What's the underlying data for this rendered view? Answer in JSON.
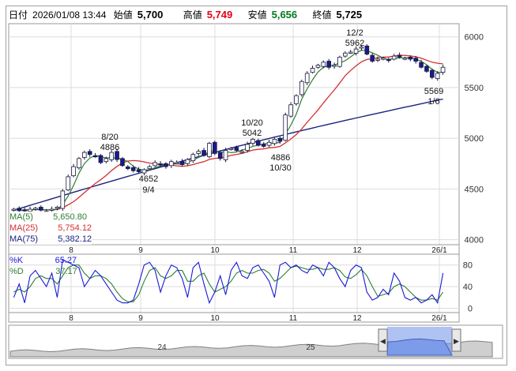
{
  "header": {
    "date_label": "日付",
    "datetime": "2026/01/08 13:44",
    "open_label": "始値",
    "open_value": "5,700",
    "high_label": "高値",
    "high_value": "5,749",
    "low_label": "安値",
    "low_value": "5,656",
    "close_label": "終値",
    "close_value": "5,725"
  },
  "ma_legend": [
    {
      "label": "MA(5)",
      "value": "5,650.80",
      "color": "#2e7d32"
    },
    {
      "label": "MA(25)",
      "value": "5,754.12",
      "color": "#d32f2f"
    },
    {
      "label": "MA(75)",
      "value": "5,382.12",
      "color": "#1a237e"
    }
  ],
  "stoch_legend": [
    {
      "label": "%K",
      "value": "65.27",
      "color": "#1a1ad8"
    },
    {
      "label": "%D",
      "value": "37.17",
      "color": "#2e7d32"
    }
  ],
  "annotations": [
    {
      "text1": "8/20",
      "text2": "4886"
    },
    {
      "text1": "4652",
      "text2": "9/4"
    },
    {
      "text1": "10/20",
      "text2": "5042"
    },
    {
      "text1": "4886",
      "text2": "10/30"
    },
    {
      "text1": "12/2",
      "text2": "5962"
    },
    {
      "text1": "5569",
      "text2": "1/6"
    }
  ],
  "month_labels": [
    "8",
    "9",
    "10",
    "11",
    "12",
    "26/1"
  ],
  "navigator": {
    "labels": [
      "24",
      "25"
    ],
    "left_handle": "◀",
    "right_handle": "▶"
  },
  "chart_data": [
    {
      "type": "candlestick",
      "title": "",
      "yticks": [
        4000,
        4500,
        5000,
        5500,
        6000
      ],
      "ylim": [
        3950,
        6130
      ],
      "x_labels": [
        "8",
        "9",
        "10",
        "11",
        "12",
        "26/1"
      ],
      "colors": {
        "up": "#ffffff",
        "down": "#1a1a8c",
        "ma5": "#2e7d32",
        "ma25": "#d32f2f",
        "ma75": "#1a237e"
      },
      "close_approx": [
        4300,
        4285,
        4290,
        4300,
        4310,
        4290,
        4280,
        4300,
        4320,
        4480,
        4620,
        4720,
        4800,
        4860,
        4840,
        4820,
        4760,
        4800,
        4860,
        4790,
        4730,
        4700,
        4680,
        4670,
        4690,
        4720,
        4760,
        4740,
        4720,
        4770,
        4760,
        4740,
        4790,
        4840,
        4870,
        4830,
        4950,
        4850,
        4800,
        4880,
        4900,
        4880,
        4870,
        4940,
        4990,
        4930,
        4920,
        4960,
        4990,
        4970,
        5230,
        5330,
        5420,
        5560,
        5640,
        5690,
        5720,
        5750,
        5700,
        5720,
        5800,
        5840,
        5850,
        5880,
        5900,
        5830,
        5760,
        5780,
        5790,
        5770,
        5810,
        5800,
        5790,
        5780,
        5760,
        5700,
        5660,
        5600,
        5640,
        5700
      ],
      "ma": [
        {
          "name": "MA(5)",
          "last": 5650.8
        },
        {
          "name": "MA(25)",
          "last": 5754.12
        },
        {
          "name": "MA(75)",
          "last": 5382.12
        }
      ]
    },
    {
      "type": "line",
      "title": "",
      "yticks": [
        0,
        40,
        80
      ],
      "ylim": [
        -8,
        100
      ],
      "series": [
        {
          "name": "%K",
          "last": 65.27
        },
        {
          "name": "%D",
          "last": 37.17
        }
      ],
      "k_approx": [
        20,
        45,
        10,
        60,
        70,
        55,
        40,
        65,
        20,
        90,
        85,
        80,
        75,
        40,
        55,
        70,
        60,
        45,
        30,
        15,
        10,
        10,
        15,
        45,
        80,
        85,
        70,
        30,
        60,
        80,
        75,
        55,
        20,
        75,
        85,
        45,
        10,
        30,
        60,
        25,
        70,
        85,
        60,
        55,
        75,
        80,
        65,
        50,
        20,
        80,
        85,
        75,
        80,
        70,
        65,
        80,
        75,
        60,
        85,
        75,
        55,
        40,
        70,
        80,
        75,
        30,
        15,
        20,
        35,
        25,
        65,
        50,
        20,
        15,
        20,
        10,
        15,
        25,
        10,
        65
      ],
      "d_approx": [
        30,
        35,
        30,
        40,
        55,
        60,
        55,
        55,
        45,
        60,
        75,
        80,
        80,
        65,
        55,
        60,
        60,
        55,
        45,
        30,
        18,
        12,
        12,
        25,
        50,
        70,
        75,
        60,
        55,
        60,
        70,
        70,
        50,
        50,
        60,
        65,
        45,
        30,
        35,
        40,
        50,
        65,
        70,
        65,
        65,
        70,
        72,
        65,
        50,
        55,
        65,
        75,
        78,
        75,
        72,
        72,
        75,
        72,
        72,
        75,
        70,
        58,
        55,
        62,
        72,
        60,
        40,
        22,
        25,
        28,
        40,
        45,
        40,
        30,
        20,
        15,
        15,
        18,
        15,
        30
      ]
    }
  ]
}
